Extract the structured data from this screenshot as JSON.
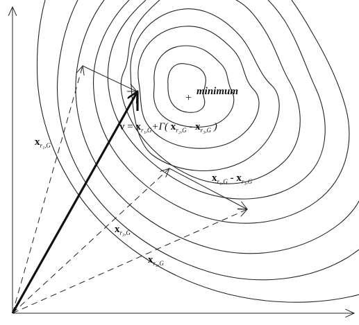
{
  "labels": {
    "minimum": "minimum",
    "plus_mark": "+",
    "v_equation": {
      "lhs": "v",
      "eq": "=",
      "x1": "x",
      "x1_sub": "r₁,G",
      "plus_gamma": "+Γ(",
      "x2": "x",
      "x2_sub": "r₂,G",
      "minus": "-",
      "x3": "x",
      "x3_sub": "r₃,G",
      "close": ")"
    },
    "diff_vector": {
      "x2": "x",
      "x2_sub": "r₂,G",
      "minus": "-",
      "x3": "x",
      "x3_sub": "r₃,G"
    },
    "xr1": {
      "x": "x",
      "sub": "r₁,G"
    },
    "xr3": {
      "x": "x",
      "sub": "r₃,G"
    },
    "xr2": {
      "x": "x",
      "sub": "r₂,G"
    }
  }
}
